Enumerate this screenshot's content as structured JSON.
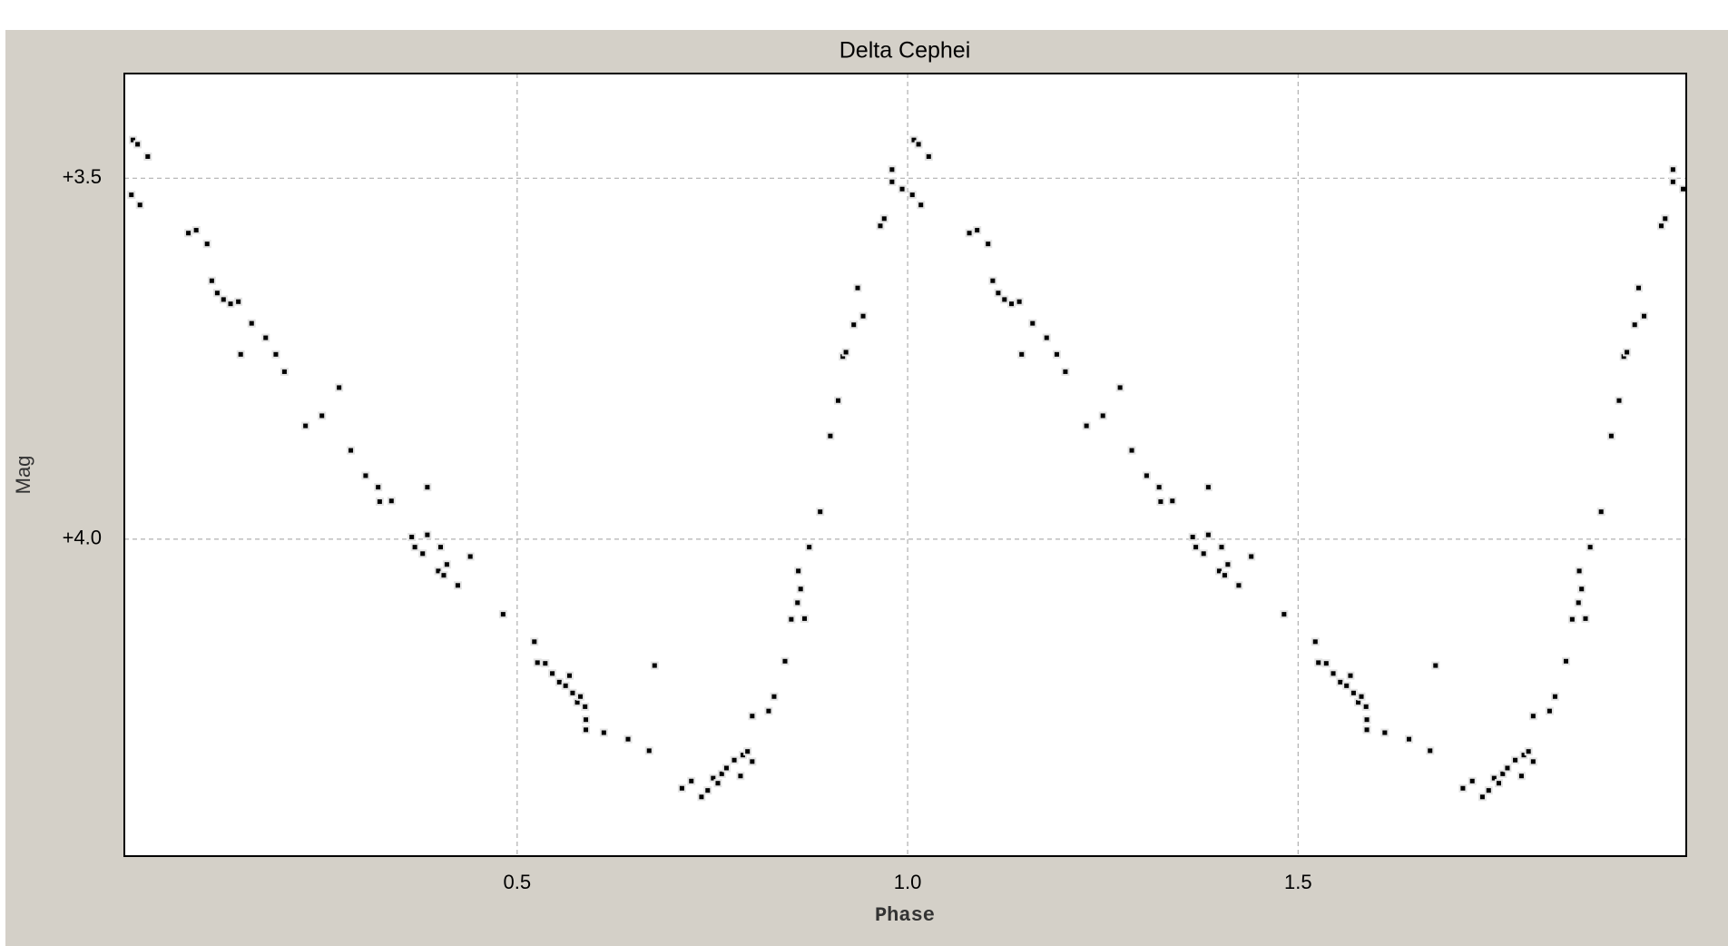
{
  "chart_data": {
    "type": "scatter",
    "title": "Delta Cephei",
    "x_label": "Phase",
    "y_label": "Mag",
    "color": "#000000",
    "grid": true,
    "xlim": [
      -0.003,
      1.997
    ],
    "ylim": [
      4.439,
      3.355
    ],
    "xticks": [
      0.5,
      {
        "value": 1.0,
        "label": "1.0"
      },
      1.5
    ],
    "yticks": [
      {
        "value": 3.5,
        "label": "+3.5"
      },
      {
        "value": 4.0,
        "label": "+4.0"
      }
    ],
    "x": [
      0.008,
      0.014,
      0.027,
      0.006,
      0.017,
      0.079,
      0.089,
      0.103,
      0.109,
      0.116,
      0.124,
      0.133,
      0.143,
      0.146,
      0.16,
      0.178,
      0.191,
      0.202,
      0.229,
      0.25,
      0.272,
      0.287,
      0.306,
      0.322,
      0.324,
      0.339,
      0.385,
      0.365,
      0.369,
      0.385,
      0.379,
      0.402,
      0.399,
      0.406,
      0.41,
      0.424,
      0.44,
      0.482,
      0.522,
      0.526,
      0.536,
      0.545,
      0.554,
      0.562,
      0.567,
      0.571,
      0.577,
      0.581,
      0.587,
      0.588,
      0.588,
      0.611,
      0.642,
      0.669,
      0.676,
      0.711,
      0.723,
      0.736,
      0.744,
      0.751,
      0.757,
      0.762,
      0.768,
      0.778,
      0.786,
      0.789,
      0.795,
      0.801,
      0.801,
      0.822,
      0.829,
      0.843,
      0.851,
      0.859,
      0.863,
      0.86,
      0.868,
      0.874,
      0.888,
      0.901,
      0.911,
      0.917,
      0.921,
      0.931,
      0.936,
      0.943,
      0.965,
      0.97,
      0.98,
      0.98,
      0.993,
      1.008,
      1.014,
      1.027,
      1.006,
      1.017,
      1.079,
      1.089,
      1.103,
      1.109,
      1.116,
      1.124,
      1.133,
      1.143,
      1.146,
      1.16,
      1.178,
      1.191,
      1.202,
      1.229,
      1.25,
      1.272,
      1.287,
      1.306,
      1.322,
      1.324,
      1.339,
      1.385,
      1.365,
      1.369,
      1.385,
      1.379,
      1.402,
      1.399,
      1.406,
      1.41,
      1.424,
      1.44,
      1.482,
      1.522,
      1.526,
      1.536,
      1.545,
      1.554,
      1.562,
      1.567,
      1.571,
      1.577,
      1.581,
      1.587,
      1.588,
      1.588,
      1.611,
      1.642,
      1.669,
      1.676,
      1.711,
      1.723,
      1.736,
      1.744,
      1.751,
      1.757,
      1.762,
      1.768,
      1.778,
      1.786,
      1.789,
      1.795,
      1.801,
      1.801,
      1.822,
      1.829,
      1.843,
      1.851,
      1.859,
      1.863,
      1.86,
      1.868,
      1.874,
      1.888,
      1.901,
      1.911,
      1.917,
      1.921,
      1.931,
      1.936,
      1.943,
      1.965,
      1.97,
      1.98,
      1.98,
      1.993
    ],
    "values": [
      3.447,
      3.453,
      3.47,
      3.523,
      3.537,
      3.576,
      3.572,
      3.591,
      3.642,
      3.659,
      3.668,
      3.674,
      3.671,
      3.744,
      3.701,
      3.721,
      3.744,
      3.768,
      3.843,
      3.829,
      3.79,
      3.877,
      3.912,
      3.928,
      3.948,
      3.947,
      3.928,
      3.997,
      4.011,
      3.994,
      4.02,
      4.011,
      4.044,
      4.05,
      4.035,
      4.064,
      4.024,
      4.104,
      4.142,
      4.171,
      4.172,
      4.186,
      4.198,
      4.203,
      4.189,
      4.213,
      4.226,
      4.218,
      4.232,
      4.25,
      4.264,
      4.268,
      4.277,
      4.293,
      4.175,
      4.345,
      4.335,
      4.357,
      4.348,
      4.331,
      4.338,
      4.325,
      4.317,
      4.306,
      4.328,
      4.299,
      4.294,
      4.308,
      4.245,
      4.238,
      4.218,
      4.169,
      4.111,
      4.088,
      4.069,
      4.044,
      4.11,
      4.011,
      3.962,
      3.857,
      3.808,
      3.747,
      3.741,
      3.703,
      3.652,
      3.691,
      3.566,
      3.556,
      3.488,
      3.505,
      3.515,
      3.447,
      3.453,
      3.47,
      3.523,
      3.537,
      3.576,
      3.572,
      3.591,
      3.642,
      3.659,
      3.668,
      3.674,
      3.671,
      3.744,
      3.701,
      3.721,
      3.744,
      3.768,
      3.843,
      3.829,
      3.79,
      3.877,
      3.912,
      3.928,
      3.948,
      3.947,
      3.928,
      3.997,
      4.011,
      3.994,
      4.02,
      4.011,
      4.044,
      4.05,
      4.035,
      4.064,
      4.024,
      4.104,
      4.142,
      4.171,
      4.172,
      4.186,
      4.198,
      4.203,
      4.189,
      4.213,
      4.226,
      4.218,
      4.232,
      4.25,
      4.264,
      4.268,
      4.277,
      4.293,
      4.175,
      4.345,
      4.335,
      4.357,
      4.348,
      4.331,
      4.338,
      4.325,
      4.317,
      4.306,
      4.328,
      4.299,
      4.294,
      4.308,
      4.245,
      4.238,
      4.218,
      4.169,
      4.111,
      4.088,
      4.069,
      4.044,
      4.11,
      4.011,
      3.962,
      3.857,
      3.808,
      3.747,
      3.741,
      3.703,
      3.652,
      3.691,
      3.566,
      3.556,
      3.488,
      3.505,
      3.515
    ]
  }
}
